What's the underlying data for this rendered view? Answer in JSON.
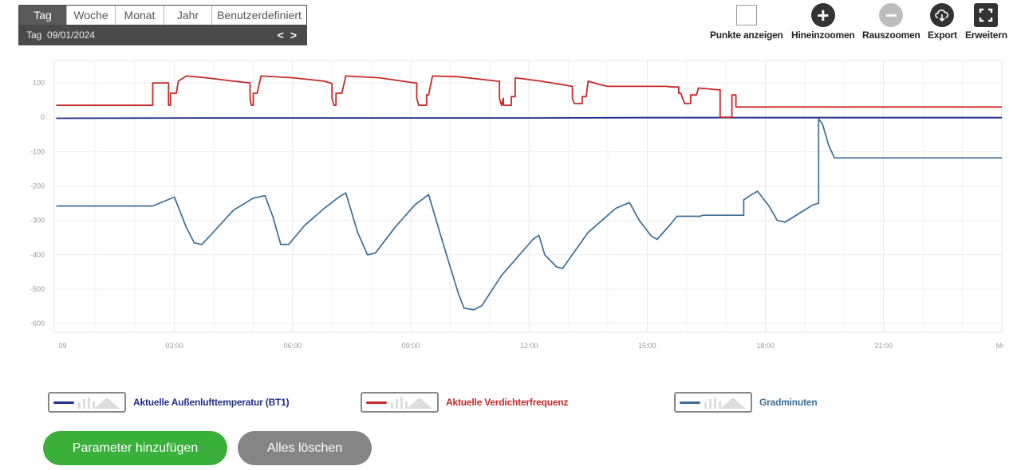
{
  "period": {
    "tabs": [
      {
        "label": "Tag",
        "active": true
      },
      {
        "label": "Woche",
        "active": false
      },
      {
        "label": "Monat",
        "active": false
      },
      {
        "label": "Jahr",
        "active": false
      },
      {
        "label": "Benutzerdefiniert",
        "active": false
      }
    ],
    "current_label": "Tag",
    "current_date": "09/01/2024",
    "prev_symbol": "<",
    "next_symbol": ">"
  },
  "toolbar": {
    "show_points": {
      "label": "Punkte anzeigen",
      "icon": "checkbox-icon",
      "checked": false
    },
    "zoom_in": {
      "label": "Hineinzoomen",
      "icon": "plus-circle-icon"
    },
    "zoom_out": {
      "label": "Rauszoomen",
      "icon": "minus-circle-icon",
      "disabled": true
    },
    "export": {
      "label": "Export",
      "icon": "cloud-download-icon"
    },
    "expand": {
      "label": "Erweitern",
      "icon": "fullscreen-icon"
    }
  },
  "chart_data": {
    "type": "line",
    "x_unit": "hours",
    "x_ticks": [
      {
        "v": 0,
        "label": "09"
      },
      {
        "v": 3,
        "label": "03:00"
      },
      {
        "v": 6,
        "label": "06:00"
      },
      {
        "v": 9,
        "label": "09:00"
      },
      {
        "v": 12,
        "label": "12:00"
      },
      {
        "v": 15,
        "label": "15:00"
      },
      {
        "v": 18,
        "label": "18:00"
      },
      {
        "v": 21,
        "label": "21:00"
      },
      {
        "v": 24,
        "label": "Mi"
      }
    ],
    "y_ticks": [
      100,
      0,
      -100,
      -200,
      -300,
      -400,
      -500,
      -600
    ],
    "xlim": [
      -0.05,
      24
    ],
    "ylim": [
      -625,
      165
    ],
    "grid": true,
    "legend_placement": "bottom",
    "series": [
      {
        "name": "Aktuelle Außenlufttemperatur (BT1)",
        "color": "#1f2f8a",
        "points": [
          [
            0,
            -3
          ],
          [
            4,
            -2
          ],
          [
            8,
            -2
          ],
          [
            12,
            -2
          ],
          [
            15,
            -1
          ],
          [
            16.9,
            -1
          ],
          [
            17.1,
            -1
          ],
          [
            24,
            -1
          ]
        ]
      },
      {
        "name": "Aktuelle Verdichterfrequenz",
        "color": "#c62828",
        "points": [
          [
            0,
            35
          ],
          [
            2.45,
            35
          ],
          [
            2.45,
            100
          ],
          [
            2.85,
            100
          ],
          [
            2.85,
            35
          ],
          [
            2.9,
            35
          ],
          [
            2.9,
            70
          ],
          [
            3.05,
            70
          ],
          [
            3.1,
            105
          ],
          [
            3.3,
            120
          ],
          [
            3.8,
            115
          ],
          [
            4.5,
            105
          ],
          [
            4.92,
            100
          ],
          [
            4.92,
            55
          ],
          [
            4.95,
            35
          ],
          [
            5.0,
            35
          ],
          [
            5.0,
            70
          ],
          [
            5.1,
            70
          ],
          [
            5.2,
            120
          ],
          [
            6.0,
            115
          ],
          [
            6.8,
            105
          ],
          [
            7.0,
            98
          ],
          [
            7.0,
            55
          ],
          [
            7.05,
            35
          ],
          [
            7.1,
            35
          ],
          [
            7.1,
            70
          ],
          [
            7.25,
            70
          ],
          [
            7.35,
            120
          ],
          [
            8.2,
            115
          ],
          [
            9.1,
            100
          ],
          [
            9.15,
            100
          ],
          [
            9.15,
            55
          ],
          [
            9.2,
            35
          ],
          [
            9.4,
            35
          ],
          [
            9.4,
            65
          ],
          [
            9.45,
            65
          ],
          [
            9.55,
            120
          ],
          [
            10.2,
            118
          ],
          [
            11.2,
            105
          ],
          [
            11.25,
            105
          ],
          [
            11.25,
            55
          ],
          [
            11.3,
            35
          ],
          [
            11.35,
            55
          ],
          [
            11.35,
            35
          ],
          [
            11.55,
            35
          ],
          [
            11.55,
            60
          ],
          [
            11.65,
            60
          ],
          [
            11.65,
            115
          ],
          [
            12.3,
            105
          ],
          [
            13.1,
            90
          ],
          [
            13.1,
            55
          ],
          [
            13.15,
            40
          ],
          [
            13.35,
            40
          ],
          [
            13.35,
            60
          ],
          [
            13.45,
            60
          ],
          [
            13.5,
            105
          ],
          [
            13.8,
            95
          ],
          [
            14.0,
            90
          ],
          [
            15.5,
            90
          ],
          [
            15.6,
            88
          ],
          [
            15.8,
            88
          ],
          [
            15.8,
            70
          ],
          [
            15.85,
            70
          ],
          [
            15.95,
            40
          ],
          [
            16.1,
            40
          ],
          [
            16.1,
            65
          ],
          [
            16.25,
            65
          ],
          [
            16.3,
            85
          ],
          [
            16.8,
            80
          ],
          [
            16.85,
            80
          ],
          [
            16.85,
            0
          ],
          [
            17.15,
            0
          ],
          [
            17.15,
            65
          ],
          [
            17.25,
            65
          ],
          [
            17.25,
            30
          ],
          [
            24,
            30
          ]
        ]
      },
      {
        "name": "Gradminuten",
        "color": "#3c6e96",
        "points": [
          [
            0,
            -258
          ],
          [
            2.45,
            -258
          ],
          [
            3.0,
            -232
          ],
          [
            3.3,
            -320
          ],
          [
            3.5,
            -365
          ],
          [
            3.7,
            -370
          ],
          [
            4.1,
            -320
          ],
          [
            4.5,
            -270
          ],
          [
            5.0,
            -235
          ],
          [
            5.3,
            -228
          ],
          [
            5.5,
            -290
          ],
          [
            5.7,
            -370
          ],
          [
            5.9,
            -370
          ],
          [
            6.3,
            -315
          ],
          [
            6.8,
            -265
          ],
          [
            7.2,
            -230
          ],
          [
            7.35,
            -220
          ],
          [
            7.65,
            -335
          ],
          [
            7.9,
            -400
          ],
          [
            8.1,
            -395
          ],
          [
            8.6,
            -320
          ],
          [
            9.1,
            -255
          ],
          [
            9.45,
            -225
          ],
          [
            9.8,
            -360
          ],
          [
            10.2,
            -510
          ],
          [
            10.35,
            -555
          ],
          [
            10.6,
            -560
          ],
          [
            10.8,
            -548
          ],
          [
            11.3,
            -460
          ],
          [
            12.1,
            -355
          ],
          [
            12.25,
            -343
          ],
          [
            12.4,
            -400
          ],
          [
            12.7,
            -435
          ],
          [
            12.85,
            -440
          ],
          [
            13.5,
            -335
          ],
          [
            14.2,
            -265
          ],
          [
            14.4,
            -255
          ],
          [
            14.55,
            -248
          ],
          [
            14.8,
            -300
          ],
          [
            15.1,
            -345
          ],
          [
            15.25,
            -355
          ],
          [
            15.6,
            -310
          ],
          [
            15.75,
            -288
          ],
          [
            16.35,
            -288
          ],
          [
            16.4,
            -285
          ],
          [
            17.45,
            -285
          ],
          [
            17.45,
            -240
          ],
          [
            17.65,
            -225
          ],
          [
            17.8,
            -215
          ],
          [
            18.1,
            -260
          ],
          [
            18.3,
            -300
          ],
          [
            18.5,
            -305
          ],
          [
            18.85,
            -280
          ],
          [
            19.2,
            -255
          ],
          [
            19.35,
            -250
          ],
          [
            19.35,
            -5
          ],
          [
            19.45,
            -20
          ],
          [
            19.6,
            -80
          ],
          [
            19.75,
            -118
          ],
          [
            24,
            -118
          ]
        ]
      }
    ]
  },
  "legend": [
    {
      "label": "Aktuelle Außenlufttemperatur (BT1)",
      "color": "#1f2f8a"
    },
    {
      "label": "Aktuelle Verdichterfrequenz",
      "color": "#c62828"
    },
    {
      "label": "Gradminuten",
      "color": "#3c6e96"
    }
  ],
  "buttons": {
    "add_parameter": "Parameter hinzufügen",
    "clear_all": "Alles löschen"
  }
}
